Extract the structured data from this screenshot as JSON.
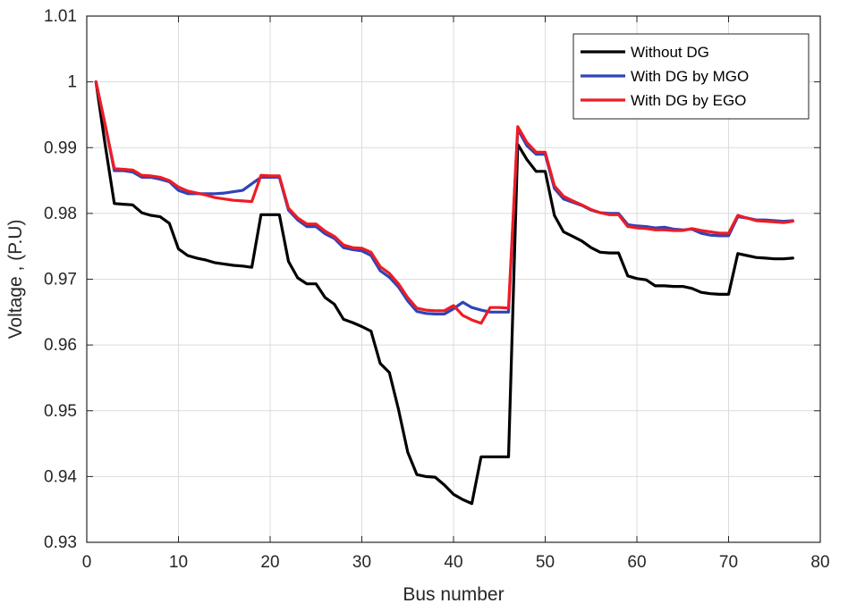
{
  "chart_data": {
    "type": "line",
    "title": "",
    "xlabel": "Bus number",
    "ylabel": "Voltage , (P.U)",
    "xlim": [
      0,
      80
    ],
    "ylim": [
      0.93,
      1.01
    ],
    "xticks": [
      0,
      10,
      20,
      30,
      40,
      50,
      60,
      70,
      80
    ],
    "yticks": [
      0.93,
      0.94,
      0.95,
      0.96,
      0.97,
      0.98,
      0.99,
      1,
      1.01
    ],
    "xtick_labels": [
      "0",
      "10",
      "20",
      "30",
      "40",
      "50",
      "60",
      "70",
      "80"
    ],
    "ytick_labels": [
      "0.93",
      "0.94",
      "0.95",
      "0.96",
      "0.97",
      "0.98",
      "0.99",
      "1",
      "1.01"
    ],
    "grid": true,
    "legend": {
      "placement": "top-right"
    },
    "series": [
      {
        "name": "Without DG",
        "color": "#000000",
        "x": [
          1,
          2,
          3,
          4,
          5,
          6,
          7,
          8,
          9,
          10,
          11,
          12,
          13,
          14,
          15,
          16,
          17,
          18,
          19,
          20,
          21,
          22,
          23,
          24,
          25,
          26,
          27,
          28,
          29,
          30,
          31,
          32,
          33,
          34,
          35,
          36,
          37,
          38,
          39,
          40,
          41,
          42,
          43,
          44,
          45,
          46,
          47,
          48,
          49,
          50,
          51,
          52,
          53,
          54,
          55,
          56,
          57,
          58,
          59,
          60,
          61,
          62,
          63,
          64,
          65,
          66,
          67,
          68,
          69,
          70,
          71,
          72,
          73,
          74,
          75,
          76,
          77
        ],
        "values": [
          1.0,
          0.9905,
          0.9815,
          0.9814,
          0.9813,
          0.9801,
          0.9797,
          0.9795,
          0.9785,
          0.9746,
          0.9736,
          0.9732,
          0.9729,
          0.9725,
          0.9723,
          0.9721,
          0.972,
          0.9718,
          0.9798,
          0.9798,
          0.9798,
          0.9727,
          0.9702,
          0.9693,
          0.9693,
          0.9672,
          0.9662,
          0.9639,
          0.9634,
          0.9628,
          0.9621,
          0.9572,
          0.9558,
          0.9502,
          0.9437,
          0.9403,
          0.94,
          0.9399,
          0.9387,
          0.9373,
          0.9365,
          0.9359,
          0.943,
          0.943,
          0.943,
          0.943,
          0.9905,
          0.9882,
          0.9864,
          0.9864,
          0.9797,
          0.9772,
          0.9765,
          0.9758,
          0.9748,
          0.9741,
          0.974,
          0.974,
          0.9705,
          0.9701,
          0.9699,
          0.969,
          0.969,
          0.9689,
          0.9689,
          0.9686,
          0.968,
          0.9678,
          0.9677,
          0.9677,
          0.9739,
          0.9736,
          0.9733,
          0.9732,
          0.9731,
          0.9731,
          0.9732
        ]
      },
      {
        "name": "With DG by MGO",
        "color": "#2e44b8",
        "x": [
          1,
          2,
          3,
          4,
          5,
          6,
          7,
          8,
          9,
          10,
          11,
          12,
          13,
          14,
          15,
          16,
          17,
          18,
          19,
          20,
          21,
          22,
          23,
          24,
          25,
          26,
          27,
          28,
          29,
          30,
          31,
          32,
          33,
          34,
          35,
          36,
          37,
          38,
          39,
          40,
          41,
          42,
          43,
          44,
          45,
          46,
          47,
          48,
          49,
          50,
          51,
          52,
          53,
          54,
          55,
          56,
          57,
          58,
          59,
          60,
          61,
          62,
          63,
          64,
          65,
          66,
          67,
          68,
          69,
          70,
          71,
          72,
          73,
          74,
          75,
          76,
          77
        ],
        "values": [
          1.0,
          0.9935,
          0.9865,
          0.9865,
          0.9863,
          0.9855,
          0.9855,
          0.9852,
          0.9848,
          0.9835,
          0.983,
          0.983,
          0.983,
          0.983,
          0.9831,
          0.9833,
          0.9835,
          0.9845,
          0.9855,
          0.9855,
          0.9855,
          0.9805,
          0.979,
          0.978,
          0.978,
          0.9769,
          0.9762,
          0.9748,
          0.9745,
          0.9743,
          0.9736,
          0.9713,
          0.9703,
          0.9688,
          0.9667,
          0.9651,
          0.9648,
          0.9647,
          0.9647,
          0.9655,
          0.9665,
          0.9657,
          0.9653,
          0.965,
          0.965,
          0.965,
          0.9928,
          0.9903,
          0.989,
          0.989,
          0.9838,
          0.9822,
          0.9817,
          0.9812,
          0.9805,
          0.9801,
          0.98,
          0.98,
          0.9783,
          0.9781,
          0.978,
          0.9778,
          0.9779,
          0.9776,
          0.9775,
          0.9776,
          0.977,
          0.9767,
          0.9766,
          0.9766,
          0.9795,
          0.9793,
          0.979,
          0.979,
          0.9789,
          0.9788,
          0.9789
        ]
      },
      {
        "name": "With DG by EGO",
        "color": "#ee1c24",
        "x": [
          1,
          2,
          3,
          4,
          5,
          6,
          7,
          8,
          9,
          10,
          11,
          12,
          13,
          14,
          15,
          16,
          17,
          18,
          19,
          20,
          21,
          22,
          23,
          24,
          25,
          26,
          27,
          28,
          29,
          30,
          31,
          32,
          33,
          34,
          35,
          36,
          37,
          38,
          39,
          40,
          41,
          42,
          43,
          44,
          45,
          46,
          47,
          48,
          49,
          50,
          51,
          52,
          53,
          54,
          55,
          56,
          57,
          58,
          59,
          60,
          61,
          62,
          63,
          64,
          65,
          66,
          67,
          68,
          69,
          70,
          71,
          72,
          73,
          74,
          75,
          76,
          77
        ],
        "values": [
          1.0,
          0.9935,
          0.9868,
          0.9867,
          0.9866,
          0.9858,
          0.9857,
          0.9855,
          0.985,
          0.984,
          0.9834,
          0.9831,
          0.9828,
          0.9824,
          0.9822,
          0.982,
          0.9819,
          0.9818,
          0.9858,
          0.9857,
          0.9857,
          0.9808,
          0.9793,
          0.9784,
          0.9784,
          0.9773,
          0.9765,
          0.9752,
          0.9748,
          0.9747,
          0.9741,
          0.9719,
          0.9709,
          0.9693,
          0.9672,
          0.9656,
          0.9653,
          0.9652,
          0.9652,
          0.966,
          0.9645,
          0.9638,
          0.9633,
          0.9657,
          0.9657,
          0.9656,
          0.9932,
          0.9908,
          0.9893,
          0.9893,
          0.9842,
          0.9826,
          0.9819,
          0.9813,
          0.9806,
          0.9801,
          0.9798,
          0.9798,
          0.978,
          0.9778,
          0.9777,
          0.9775,
          0.9775,
          0.9774,
          0.9774,
          0.9777,
          0.9774,
          0.9772,
          0.977,
          0.977,
          0.9797,
          0.9793,
          0.9789,
          0.9788,
          0.9787,
          0.9786,
          0.9788
        ]
      }
    ]
  }
}
